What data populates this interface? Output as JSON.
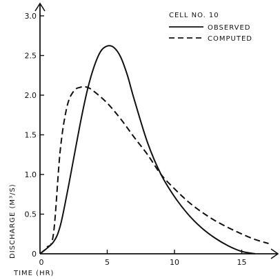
{
  "chart_data": {
    "type": "line",
    "title": "CELL NO. 10",
    "xlabel": "TIME (HR)",
    "ylabel": "DISCHARGE (M³/S)",
    "xlim": [
      0,
      17.5
    ],
    "ylim": [
      0,
      3.1
    ],
    "x_ticks": [
      0,
      5,
      10,
      15
    ],
    "y_ticks": [
      0,
      0.5,
      1.0,
      1.5,
      2.0,
      2.5,
      3.0
    ],
    "x_tick_labels": [
      "0",
      "5",
      "10",
      "15"
    ],
    "y_tick_labels": [
      "0",
      "0.5",
      "1.0",
      "1.5",
      "2.0",
      "2.5",
      "3.0"
    ],
    "grid": false,
    "legend_position": "top-right",
    "series": [
      {
        "name": "OBSERVED",
        "style": "solid",
        "x": [
          0,
          1,
          1.5,
          2,
          2.5,
          3,
          3.5,
          4,
          4.5,
          5,
          5.5,
          6,
          6.5,
          7,
          8,
          9,
          10,
          11,
          12,
          13,
          14,
          15,
          16
        ],
        "y": [
          0,
          0.15,
          0.35,
          0.75,
          1.2,
          1.65,
          2.05,
          2.35,
          2.55,
          2.62,
          2.6,
          2.48,
          2.25,
          1.95,
          1.4,
          1.0,
          0.72,
          0.5,
          0.33,
          0.2,
          0.1,
          0.03,
          0
        ]
      },
      {
        "name": "COMPUTED",
        "style": "dashed",
        "x": [
          0,
          0.5,
          1,
          1.5,
          2,
          2.5,
          3,
          3.5,
          4,
          5,
          6,
          7,
          8,
          9,
          10,
          11,
          12,
          13,
          14,
          15,
          16,
          17
        ],
        "y": [
          0,
          0.08,
          0.25,
          1.3,
          1.85,
          2.05,
          2.1,
          2.1,
          2.05,
          1.9,
          1.7,
          1.47,
          1.25,
          1.0,
          0.82,
          0.66,
          0.53,
          0.42,
          0.33,
          0.25,
          0.18,
          0.13
        ]
      }
    ]
  }
}
